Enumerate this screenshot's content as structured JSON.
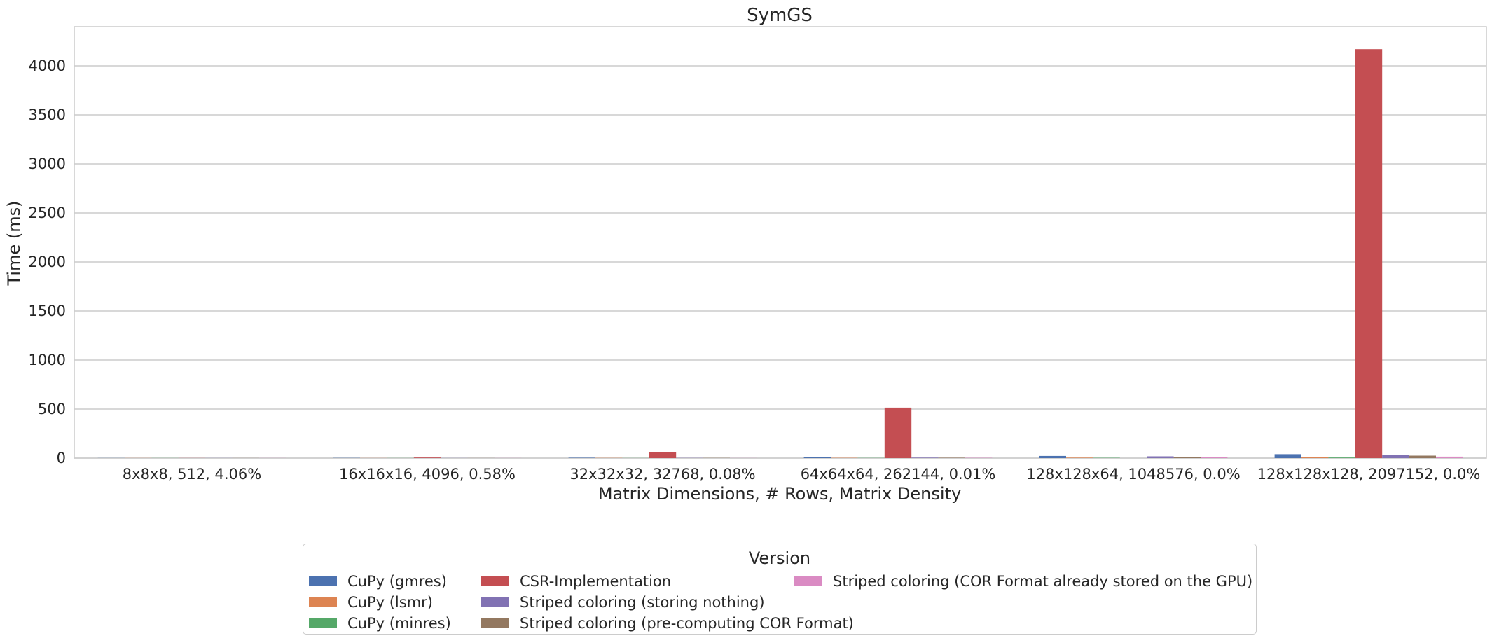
{
  "chart_data": {
    "type": "bar",
    "title": "SymGS",
    "xlabel": "Matrix Dimensions, # Rows, Matrix Density",
    "ylabel": "Time (ms)",
    "ylim": [
      0,
      4400
    ],
    "yticks": [
      0,
      500,
      1000,
      1500,
      2000,
      2500,
      3000,
      3500,
      4000
    ],
    "grid": true,
    "legend_placement": "bottom-center",
    "legend_title": "Version",
    "categories": [
      "8x8x8, 512, 4.06%",
      "16x16x16, 4096, 0.58%",
      "32x32x32, 32768, 0.08%",
      "64x64x64, 262144, 0.01%",
      "128x128x64, 1048576, 0.0%",
      "128x128x128, 2097152, 0.0%"
    ],
    "series": [
      {
        "name": "CuPy (gmres)",
        "color": "#4c72b0",
        "values": [
          1,
          2,
          4,
          8,
          22,
          40
        ]
      },
      {
        "name": "CuPy (lsmr)",
        "color": "#dd8452",
        "values": [
          1,
          1,
          2,
          3,
          5,
          10
        ]
      },
      {
        "name": "CuPy (minres)",
        "color": "#55a868",
        "values": [
          1,
          1,
          1,
          2,
          3,
          6
        ]
      },
      {
        "name": "CSR-Implementation",
        "color": "#c44e52",
        "values": [
          1,
          6,
          58,
          515,
          0,
          4170
        ]
      },
      {
        "name": "Striped coloring (storing nothing)",
        "color": "#8172b3",
        "values": [
          1,
          1,
          2,
          5,
          18,
          30
        ]
      },
      {
        "name": "Striped coloring (pre-computing COR Format)",
        "color": "#937860",
        "values": [
          1,
          1,
          2,
          4,
          12,
          25
        ]
      },
      {
        "name": "Striped coloring (COR Format already stored on the GPU)",
        "color": "#da8bc3",
        "values": [
          1,
          1,
          1,
          3,
          8,
          15
        ]
      }
    ]
  }
}
